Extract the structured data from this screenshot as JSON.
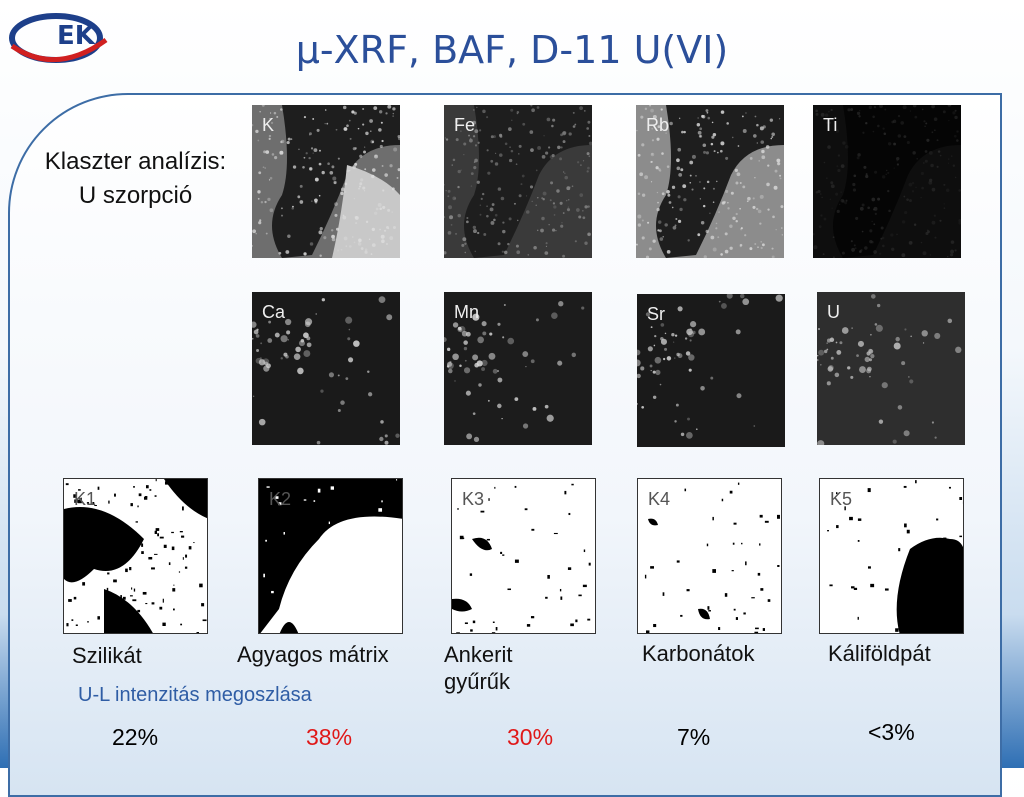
{
  "header": {
    "title": "μ-XRF, BAF, D-11 U(VI)",
    "logo": "EK"
  },
  "side_label": [
    "Klaszter analízis:",
    "U szorpció"
  ],
  "element_maps": [
    "K",
    "Fe",
    "Rb",
    "Ti",
    "Ca",
    "Mn",
    "Sr",
    "U"
  ],
  "clusters": [
    {
      "label": "K1",
      "name": [
        "Szilikát"
      ],
      "share": "22%"
    },
    {
      "label": "K2",
      "name": [
        "Agyagos mátrix"
      ],
      "share": "38%"
    },
    {
      "label": "K3",
      "name": [
        "Ankerit",
        "gyűrűk"
      ],
      "share": "30%"
    },
    {
      "label": "K4",
      "name": [
        "Karbonátok"
      ],
      "share": "7%"
    },
    {
      "label": "K5",
      "name": [
        "Káliföldpát"
      ],
      "share": "<3%"
    }
  ],
  "distribution_caption": "U-L intenzitás megoszlása"
}
